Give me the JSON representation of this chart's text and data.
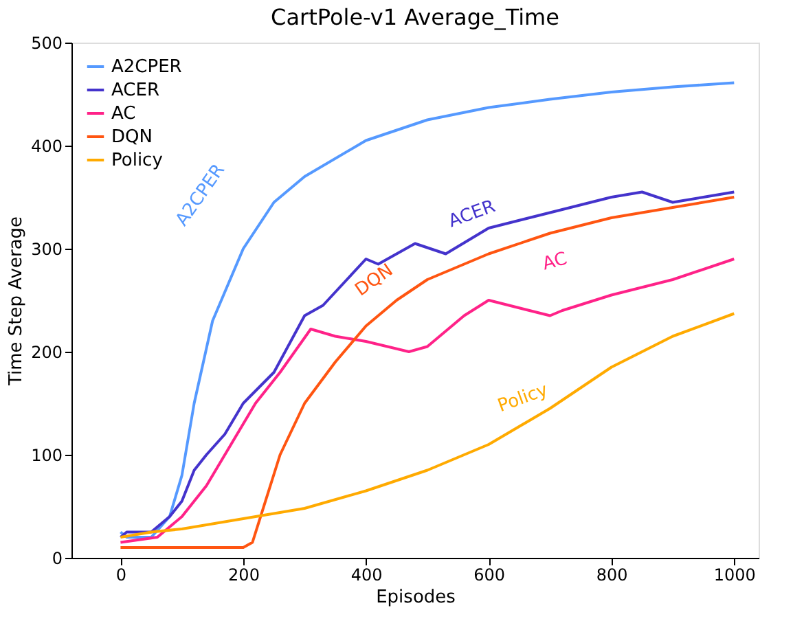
{
  "chart_data": {
    "type": "line",
    "title": "CartPole-v1 Average_Time",
    "xlabel": "Episodes",
    "ylabel": "Time Step Average",
    "xlim": [
      -80,
      1040
    ],
    "xticks": [
      0,
      200,
      400,
      600,
      800,
      1000
    ],
    "ylim": [
      0,
      500
    ],
    "yticks": [
      0,
      100,
      200,
      300,
      400,
      500
    ],
    "grid": false,
    "legend": "top left",
    "line_style": "solid",
    "marker": "none",
    "series": [
      {
        "name": "A2CPER",
        "color": "#5599ff",
        "x": [
          0,
          10,
          50,
          80,
          100,
          120,
          150,
          200,
          250,
          300,
          400,
          500,
          600,
          700,
          800,
          900,
          1000
        ],
        "values": [
          25,
          20,
          20,
          40,
          80,
          150,
          230,
          300,
          345,
          370,
          405,
          425,
          437,
          445,
          452,
          457,
          461
        ]
      },
      {
        "name": "ACER",
        "color": "#4433cc",
        "x": [
          0,
          10,
          50,
          80,
          100,
          120,
          140,
          170,
          200,
          250,
          300,
          330,
          400,
          420,
          480,
          530,
          600,
          700,
          800,
          850,
          900,
          950,
          1000
        ],
        "values": [
          20,
          25,
          25,
          40,
          55,
          85,
          100,
          120,
          150,
          180,
          235,
          245,
          290,
          285,
          305,
          295,
          320,
          335,
          350,
          355,
          345,
          350,
          355
        ]
      },
      {
        "name": "AC",
        "color": "#ff2288",
        "x": [
          0,
          60,
          100,
          140,
          180,
          220,
          260,
          310,
          350,
          400,
          470,
          500,
          560,
          600,
          700,
          720,
          800,
          900,
          1000
        ],
        "values": [
          15,
          20,
          40,
          70,
          110,
          150,
          180,
          222,
          215,
          210,
          200,
          205,
          235,
          250,
          235,
          240,
          255,
          270,
          290
        ]
      },
      {
        "name": "DQN",
        "color": "#ff5511",
        "x": [
          0,
          50,
          200,
          215,
          260,
          300,
          350,
          400,
          450,
          500,
          600,
          700,
          800,
          900,
          1000
        ],
        "values": [
          10,
          10,
          10,
          15,
          100,
          150,
          190,
          225,
          250,
          270,
          295,
          315,
          330,
          340,
          350
        ]
      },
      {
        "name": "Policy",
        "color": "#ffaa00",
        "x": [
          0,
          50,
          100,
          200,
          300,
          400,
          500,
          600,
          700,
          800,
          900,
          1000
        ],
        "values": [
          20,
          25,
          28,
          38,
          48,
          65,
          85,
          110,
          145,
          185,
          215,
          237
        ]
      }
    ],
    "annotations": [
      {
        "text": "A2CPER",
        "x": 200,
        "y": 300
      },
      {
        "text": "ACER",
        "x": 600,
        "y": 320
      },
      {
        "text": "AC",
        "x": 720,
        "y": 240
      },
      {
        "text": "DQN",
        "x": 400,
        "y": 225
      },
      {
        "text": "Policy",
        "x": 700,
        "y": 145
      }
    ]
  }
}
